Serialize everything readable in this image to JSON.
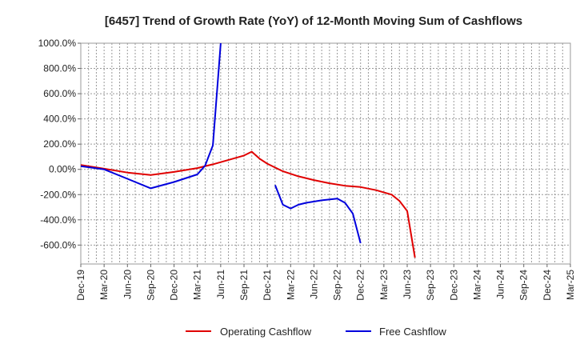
{
  "chart_data": {
    "type": "line",
    "title": "[6457]  Trend of Growth Rate (YoY) of 12-Month Moving Sum of Cashflows",
    "xlabel": "",
    "ylabel": "",
    "ylim": [
      -750,
      1000
    ],
    "y_ticks": [
      1000,
      800,
      600,
      400,
      200,
      0,
      -200,
      -400,
      -600
    ],
    "y_tick_labels": [
      "1000.0%",
      "800.0%",
      "600.0%",
      "400.0%",
      "200.0%",
      "0.00%",
      "-200.0%",
      "-400.0%",
      "-600.0%"
    ],
    "x_tick_labels": [
      "Dec-19",
      "Mar-20",
      "Jun-20",
      "Sep-20",
      "Dec-20",
      "Mar-21",
      "Jun-21",
      "Sep-21",
      "Dec-21",
      "Mar-22",
      "Jun-22",
      "Sep-22",
      "Dec-22",
      "Mar-23",
      "Jun-23",
      "Sep-23",
      "Dec-23",
      "Mar-24",
      "Jun-24",
      "Sep-24",
      "Dec-24",
      "Mar-25"
    ],
    "grid": true,
    "legend_position": "bottom",
    "series": [
      {
        "name": "Operating Cashflow",
        "color": "#e00000",
        "points": [
          [
            0,
            35
          ],
          [
            3,
            5
          ],
          [
            6,
            -25
          ],
          [
            9,
            -45
          ],
          [
            12,
            -20
          ],
          [
            15,
            10
          ],
          [
            17,
            40
          ],
          [
            19,
            75
          ],
          [
            21,
            110
          ],
          [
            22,
            140
          ],
          [
            23,
            85
          ],
          [
            24,
            45
          ],
          [
            26,
            -15
          ],
          [
            28,
            -55
          ],
          [
            30,
            -85
          ],
          [
            32,
            -110
          ],
          [
            34,
            -130
          ],
          [
            36,
            -140
          ],
          [
            38,
            -165
          ],
          [
            40,
            -200
          ],
          [
            41,
            -250
          ],
          [
            42,
            -330
          ],
          [
            43,
            -700
          ]
        ]
      },
      {
        "name": "Free Cashflow",
        "color": "#0000dd",
        "segments": [
          [
            [
              0,
              25
            ],
            [
              3,
              0
            ],
            [
              6,
              -75
            ],
            [
              9,
              -150
            ],
            [
              12,
              -100
            ],
            [
              15,
              -40
            ],
            [
              16,
              30
            ],
            [
              17,
              190
            ],
            [
              18,
              1000
            ]
          ],
          [
            [
              25,
              -125
            ],
            [
              26,
              -280
            ],
            [
              27,
              -310
            ],
            [
              28,
              -280
            ],
            [
              29,
              -265
            ],
            [
              31,
              -245
            ],
            [
              33,
              -232
            ],
            [
              34,
              -265
            ],
            [
              35,
              -350
            ],
            [
              36,
              -585
            ]
          ]
        ]
      }
    ]
  }
}
